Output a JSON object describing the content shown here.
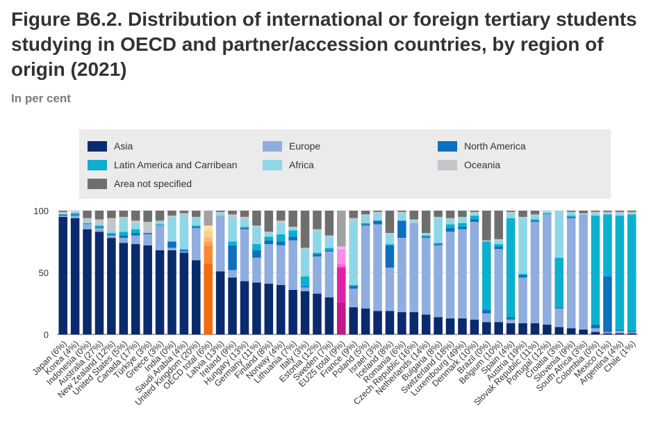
{
  "title": "Figure B6.2. Distribution of international or foreign tertiary students studying in OECD and partner/accession countries, by region of origin (2021)",
  "subtitle": "In per cent",
  "colors": {
    "Asia": "#0a2a6e",
    "Europe": "#8fadde",
    "North America": "#0e6fbe",
    "Latin America and Carribean": "#0bb0cf",
    "Africa": "#8ed7e8",
    "Oceania": "#c2c7cc",
    "Area not specified": "#6e6e6e",
    "oecd_total_palette": [
      "#f26b0f",
      "#f78a33",
      "#f9a456",
      "#fbbb74",
      "#fcd08f",
      "#fde1a9",
      "#a1a1a1"
    ],
    "eu25_total_palette": [
      "#c2168a",
      "#e021a8",
      "#ef48c6",
      "#f56bdb",
      "#f98fe8",
      "#fcb4f1",
      "#a1a1a1"
    ]
  },
  "legend": {
    "items": [
      "Asia",
      "Europe",
      "North America",
      "Latin America and Carribean",
      "Africa",
      "Oceania",
      "Area not specified"
    ]
  },
  "chart_data": {
    "type": "bar",
    "stacked": true,
    "ylim": [
      0,
      100
    ],
    "yticks": [
      0,
      50,
      100
    ],
    "gridlines": true,
    "legend_position": "top",
    "series_order": [
      "Asia",
      "Europe",
      "North America",
      "Latin America and Carribean",
      "Africa",
      "Oceania",
      "Area not specified"
    ],
    "categories": [
      "Japan (6%)",
      "Korea (4%)",
      "Indonesia (0%)",
      "Australia (27%)",
      "New Zealand (12%)",
      "United States (5%)",
      "Canada (17%)",
      "Türkiye (3%)",
      "Greece (3%)",
      "India (0%)",
      "Saudi Arabia (4%)",
      "United Kingdom (20%)",
      "OECD total (6%)",
      "Latvia (13%)",
      "Ireland (9%)",
      "Hungary (13%)",
      "Germany (11%)",
      "Finland (8%)",
      "Norway (4%)",
      "Lithuania (7%)",
      "Italy (3%)",
      "Estonia (12%)",
      "Sweden (7%)",
      "EU25 total (9%)",
      "France (9%)",
      "Poland (5%)",
      "Israel (3%)",
      "Iceland (8%)",
      "Romania (6%)",
      "Czech Republic (16%)",
      "Netherlands (14%)",
      "Bulgaria (8%)",
      "Switzerland (18%)",
      "Luxembourg (49%)",
      "Denmark (10%)",
      "Brazil (0%)",
      "Belgium (10%)",
      "Spain (4%)",
      "Austria (19%)",
      "Slovak Republic (11%)",
      "Portugal (12%)",
      "Croatia (3%)",
      "Slovenia (9%)",
      "South Africa (3%)",
      "Colombia (0%)",
      "Mexico (1%)",
      "Argentina (4%)",
      "Chile (1%)"
    ],
    "series": [
      {
        "name": "Asia",
        "values": [
          95,
          94,
          85,
          83,
          78,
          74,
          73,
          72,
          68,
          68,
          66,
          60,
          57,
          51,
          46,
          43,
          42,
          41,
          40,
          36,
          35,
          33,
          30,
          26,
          22,
          21,
          19,
          19,
          18,
          18,
          16,
          14,
          13,
          13,
          12,
          10,
          10,
          9,
          9,
          9,
          8,
          6,
          5,
          4,
          2,
          1,
          1,
          1
        ]
      },
      {
        "name": "Europe",
        "values": [
          1,
          2,
          4,
          3,
          2,
          4,
          7,
          9,
          20,
          2,
          1,
          26,
          15,
          45,
          6,
          42,
          20,
          32,
          32,
          40,
          3,
          30,
          37,
          28,
          15,
          67,
          70,
          35,
          60,
          72,
          62,
          58,
          70,
          72,
          79,
          7,
          59,
          3,
          37,
          82,
          89,
          15,
          89,
          93,
          3,
          1,
          2,
          1
        ]
      },
      {
        "name": "North America",
        "values": [
          1,
          1,
          0,
          1,
          1,
          2,
          2,
          1,
          0,
          5,
          1,
          1,
          3,
          0,
          20,
          1,
          6,
          3,
          3,
          3,
          1,
          2,
          1,
          1,
          2,
          1,
          3,
          18,
          14,
          0,
          1,
          1,
          3,
          2,
          2,
          3,
          2,
          2,
          2,
          1,
          0,
          1,
          1,
          0,
          3,
          45,
          1,
          1
        ]
      },
      {
        "name": "Latin America and Carribean",
        "values": [
          0,
          1,
          1,
          1,
          1,
          3,
          3,
          0,
          1,
          0,
          1,
          1,
          4,
          0,
          3,
          1,
          5,
          3,
          6,
          5,
          8,
          1,
          2,
          2,
          1,
          1,
          0,
          1,
          0,
          0,
          1,
          1,
          3,
          3,
          3,
          55,
          2,
          80,
          1,
          1,
          1,
          40,
          1,
          0,
          88,
          50,
          92,
          94
        ]
      },
      {
        "name": "Africa",
        "values": [
          1,
          1,
          1,
          1,
          2,
          10,
          5,
          0,
          2,
          20,
          28,
          6,
          5,
          2,
          20,
          6,
          14,
          3,
          9,
          2,
          22,
          18,
          9,
          12,
          52,
          6,
          6,
          8,
          6,
          2,
          2,
          20,
          4,
          5,
          2,
          0,
          3,
          4,
          45,
          3,
          1,
          38,
          3,
          1,
          2,
          1,
          2,
          1
        ]
      },
      {
        "name": "Oceania",
        "values": [
          1,
          1,
          3,
          4,
          10,
          2,
          2,
          9,
          1,
          1,
          1,
          1,
          4,
          1,
          2,
          2,
          1,
          1,
          2,
          1,
          1,
          1,
          1,
          2,
          2,
          1,
          1,
          1,
          1,
          1,
          0,
          1,
          1,
          0,
          1,
          1,
          1,
          1,
          1,
          1,
          1,
          0,
          0,
          0,
          1,
          1,
          1,
          1
        ]
      },
      {
        "name": "Area not specified",
        "values": [
          1,
          0,
          6,
          7,
          6,
          5,
          8,
          9,
          8,
          4,
          2,
          5,
          12,
          1,
          3,
          5,
          12,
          17,
          8,
          13,
          30,
          15,
          20,
          29,
          6,
          3,
          1,
          18,
          1,
          7,
          18,
          5,
          6,
          5,
          1,
          24,
          23,
          1,
          5,
          3,
          0,
          0,
          1,
          2,
          1,
          1,
          1,
          1
        ]
      }
    ]
  }
}
